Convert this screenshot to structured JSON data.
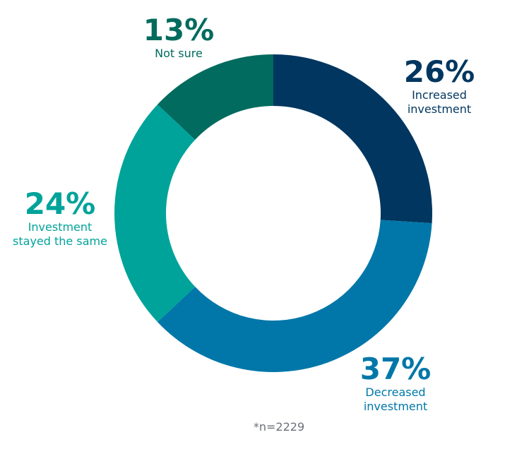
{
  "chart_data": {
    "type": "pie",
    "variant": "donut",
    "slices": [
      {
        "value": 26,
        "value_label": "26%",
        "label_lines": [
          "Increased",
          "investment"
        ],
        "color": "#00365f"
      },
      {
        "value": 37,
        "value_label": "37%",
        "label_lines": [
          "Decreased",
          "investment"
        ],
        "color": "#0077a8"
      },
      {
        "value": 24,
        "value_label": "24%",
        "label_lines": [
          "Investment",
          "stayed the same"
        ],
        "color": "#00a39a"
      },
      {
        "value": 13,
        "value_label": "13%",
        "label_lines": [
          "Not sure"
        ],
        "color": "#006b5e"
      }
    ],
    "label_colors": [
      "#00365f",
      "#0077a8",
      "#00a39a",
      "#006b5e"
    ],
    "note": "*n=2229"
  }
}
